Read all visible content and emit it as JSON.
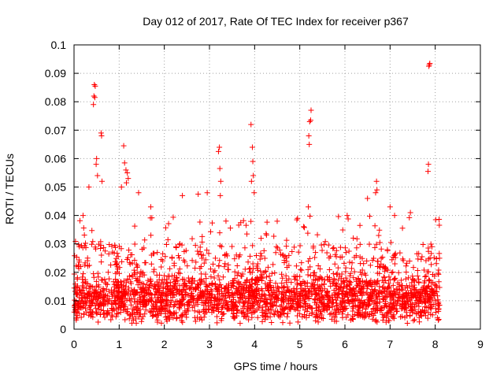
{
  "chart_data": {
    "type": "scatter",
    "title": "Day 012 of 2017, Rate Of TEC Index for receiver p367",
    "xlabel": "GPS time / hours",
    "ylabel": "ROTI / TECUs",
    "xlim": [
      0,
      9
    ],
    "ylim": [
      0,
      0.1
    ],
    "xticks": [
      "0",
      "1",
      "2",
      "3",
      "4",
      "5",
      "6",
      "7",
      "8",
      "9"
    ],
    "yticks": [
      "0",
      "0.01",
      "0.02",
      "0.03",
      "0.04",
      "0.05",
      "0.06",
      "0.07",
      "0.08",
      "0.09",
      "0.1"
    ],
    "grid": true,
    "marker": "+",
    "color": "#ff0000",
    "data_extent_hours": [
      0,
      8.1
    ],
    "background_density": {
      "typical_min": 0.004,
      "typical_max": 0.03,
      "typical_center": 0.011
    },
    "spikes": [
      {
        "x": 0.45,
        "y": 0.086
      },
      {
        "x": 0.47,
        "y": 0.0855
      },
      {
        "x": 0.44,
        "y": 0.082
      },
      {
        "x": 0.46,
        "y": 0.0815
      },
      {
        "x": 0.43,
        "y": 0.079
      },
      {
        "x": 0.6,
        "y": 0.069
      },
      {
        "x": 0.61,
        "y": 0.068
      },
      {
        "x": 0.5,
        "y": 0.06
      },
      {
        "x": 0.49,
        "y": 0.058
      },
      {
        "x": 0.52,
        "y": 0.054
      },
      {
        "x": 0.62,
        "y": 0.052
      },
      {
        "x": 0.33,
        "y": 0.05
      },
      {
        "x": 1.1,
        "y": 0.0645
      },
      {
        "x": 1.12,
        "y": 0.0585
      },
      {
        "x": 1.15,
        "y": 0.056
      },
      {
        "x": 1.18,
        "y": 0.055
      },
      {
        "x": 1.2,
        "y": 0.053
      },
      {
        "x": 1.16,
        "y": 0.0515
      },
      {
        "x": 1.05,
        "y": 0.05
      },
      {
        "x": 1.43,
        "y": 0.048
      },
      {
        "x": 3.22,
        "y": 0.064
      },
      {
        "x": 3.2,
        "y": 0.0625
      },
      {
        "x": 3.23,
        "y": 0.0565
      },
      {
        "x": 3.25,
        "y": 0.052
      },
      {
        "x": 3.24,
        "y": 0.047
      },
      {
        "x": 2.95,
        "y": 0.048
      },
      {
        "x": 3.92,
        "y": 0.072
      },
      {
        "x": 3.95,
        "y": 0.064
      },
      {
        "x": 3.96,
        "y": 0.059
      },
      {
        "x": 3.97,
        "y": 0.054
      },
      {
        "x": 3.93,
        "y": 0.052
      },
      {
        "x": 3.99,
        "y": 0.048
      },
      {
        "x": 5.25,
        "y": 0.077
      },
      {
        "x": 5.24,
        "y": 0.0735
      },
      {
        "x": 5.22,
        "y": 0.073
      },
      {
        "x": 5.2,
        "y": 0.068
      },
      {
        "x": 5.21,
        "y": 0.065
      },
      {
        "x": 5.19,
        "y": 0.043
      },
      {
        "x": 6.7,
        "y": 0.052
      },
      {
        "x": 6.71,
        "y": 0.049
      },
      {
        "x": 6.68,
        "y": 0.048
      },
      {
        "x": 6.5,
        "y": 0.046
      },
      {
        "x": 7.88,
        "y": 0.0935
      },
      {
        "x": 7.86,
        "y": 0.0925
      },
      {
        "x": 7.87,
        "y": 0.093
      },
      {
        "x": 7.85,
        "y": 0.058
      },
      {
        "x": 7.84,
        "y": 0.0555
      },
      {
        "x": 7.45,
        "y": 0.041
      },
      {
        "x": 2.4,
        "y": 0.047
      },
      {
        "x": 2.75,
        "y": 0.0475
      },
      {
        "x": 0.2,
        "y": 0.04
      },
      {
        "x": 1.7,
        "y": 0.043
      },
      {
        "x": 4.5,
        "y": 0.038
      },
      {
        "x": 6.05,
        "y": 0.04
      },
      {
        "x": 4.95,
        "y": 0.039
      },
      {
        "x": 7.1,
        "y": 0.04
      },
      {
        "x": 7.0,
        "y": 0.043
      }
    ]
  }
}
